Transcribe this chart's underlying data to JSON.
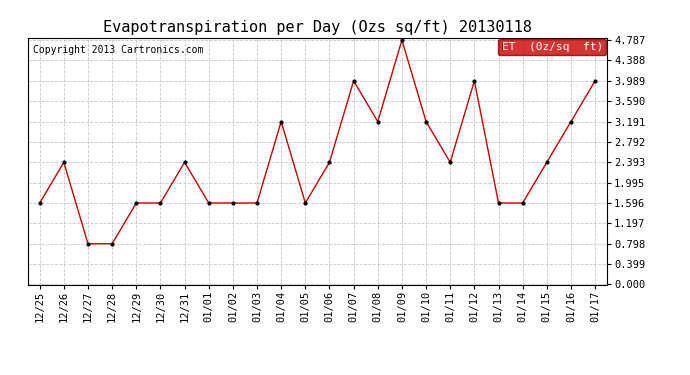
{
  "title": "Evapotranspiration per Day (Ozs sq/ft) 20130118",
  "copyright": "Copyright 2013 Cartronics.com",
  "legend_label": "ET  (0z/sq  ft)",
  "x_labels": [
    "12/25",
    "12/26",
    "12/27",
    "12/28",
    "12/29",
    "12/30",
    "12/31",
    "01/01",
    "01/02",
    "01/03",
    "01/04",
    "01/05",
    "01/06",
    "01/07",
    "01/08",
    "01/09",
    "01/10",
    "01/11",
    "01/12",
    "01/13",
    "01/14",
    "01/15",
    "01/16",
    "01/17"
  ],
  "y_values": [
    1.596,
    2.393,
    0.798,
    0.798,
    1.596,
    1.596,
    2.393,
    1.596,
    1.596,
    1.596,
    3.191,
    1.596,
    2.393,
    3.989,
    3.191,
    4.787,
    3.191,
    2.393,
    3.989,
    1.596,
    1.596,
    2.393,
    3.191,
    3.989
  ],
  "y_ticks": [
    0.0,
    0.399,
    0.798,
    1.197,
    1.596,
    1.995,
    2.393,
    2.792,
    3.191,
    3.59,
    3.989,
    4.388,
    4.787
  ],
  "y_min": 0.0,
  "y_max": 4.787,
  "line_color": "#cc0000",
  "marker_color": "#000000",
  "background_color": "#ffffff",
  "grid_color": "#c8c8c8",
  "legend_bg_color": "#cc0000",
  "legend_text_color": "#ffffff",
  "title_fontsize": 11,
  "copyright_fontsize": 7,
  "tick_fontsize": 7.5,
  "legend_fontsize": 8
}
